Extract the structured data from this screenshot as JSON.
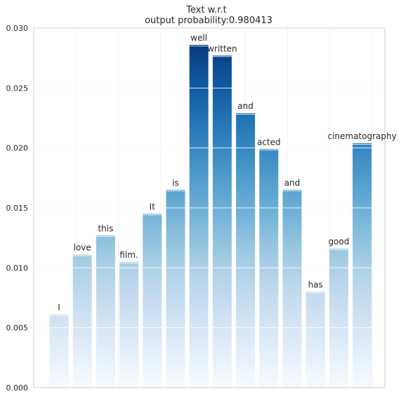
{
  "chart_data": {
    "type": "bar",
    "title_line1": "Text w.r.t",
    "title_line2": "output probability:0.980413",
    "xlabel": "",
    "ylabel": "",
    "ylim": [
      0,
      0.03
    ],
    "yticks": [
      "0.000",
      "0.005",
      "0.010",
      "0.015",
      "0.020",
      "0.025",
      "0.030"
    ],
    "ytick_values": [
      0,
      0.005,
      0.01,
      0.015,
      0.02,
      0.025,
      0.03
    ],
    "grid": true,
    "colormap": "Blues",
    "categories": [
      "I",
      "love",
      "this",
      "film.",
      "It",
      "is",
      "well",
      "written",
      "and",
      "acted",
      "and",
      "has",
      "good",
      "cinematography"
    ],
    "values": [
      0.0061,
      0.0111,
      0.0127,
      0.0105,
      0.0145,
      0.0165,
      0.0286,
      0.0277,
      0.0229,
      0.0199,
      0.0165,
      0.008,
      0.0116,
      0.0204
    ],
    "colors": {
      "axis": "#cccccc",
      "grid": "#f2f2f2",
      "text": "#262626",
      "bar_top_max": "#08306b",
      "bar_bottom": "#ffffff"
    }
  }
}
